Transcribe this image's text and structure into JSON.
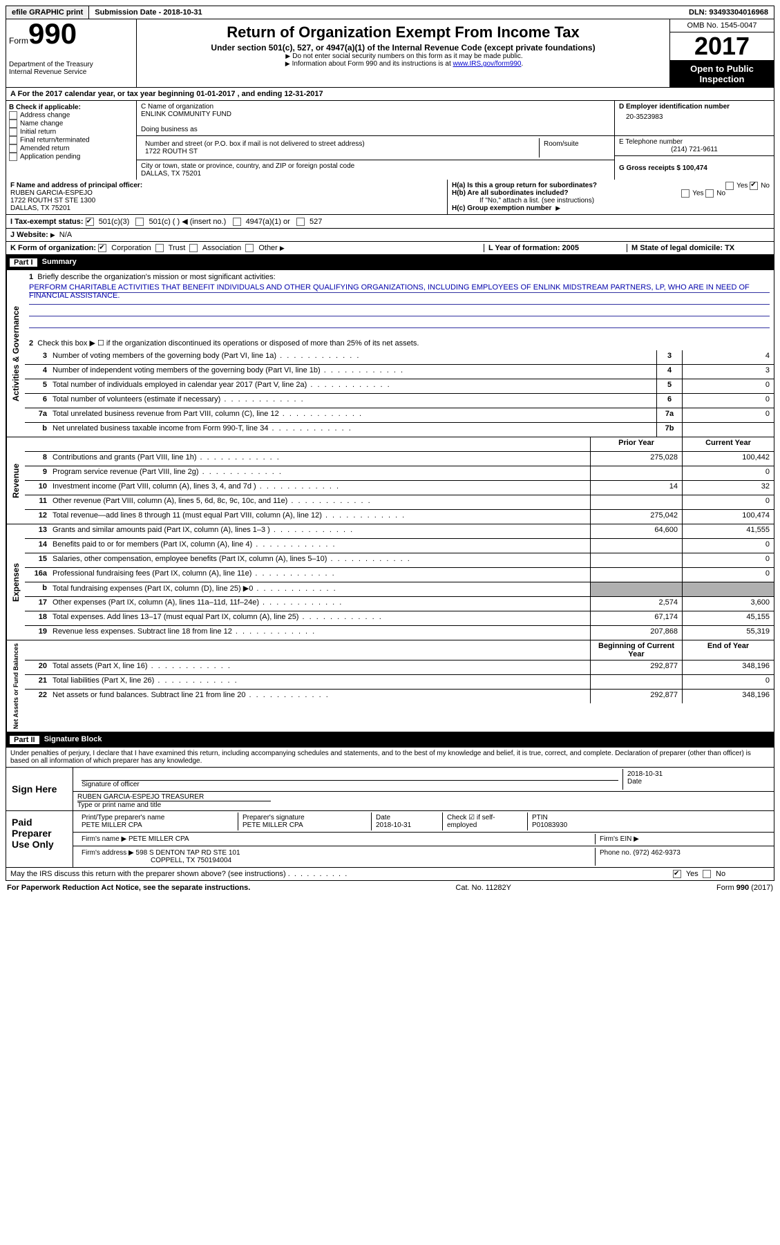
{
  "topbar": {
    "efile": "efile GRAPHIC print",
    "submission": "Submission Date - 2018-10-31",
    "dln": "DLN: 93493304016968"
  },
  "header": {
    "form_label": "Form",
    "form_number": "990",
    "dept1": "Department of the Treasury",
    "dept2": "Internal Revenue Service",
    "title": "Return of Organization Exempt From Income Tax",
    "subtitle": "Under section 501(c), 527, or 4947(a)(1) of the Internal Revenue Code (except private foundations)",
    "note1": "Do not enter social security numbers on this form as it may be made public.",
    "note2_pre": "Information about Form 990 and its instructions is at ",
    "note2_link": "www.IRS.gov/form990",
    "omb": "OMB No. 1545-0047",
    "year": "2017",
    "open_public": "Open to Public Inspection"
  },
  "section_a": "A   For the 2017 calendar year, or tax year beginning 01-01-2017    , and ending 12-31-2017",
  "col_b": {
    "label": "B Check if applicable:",
    "items": [
      "Address change",
      "Name change",
      "Initial return",
      "Final return/terminated",
      "Amended return",
      "Application pending"
    ]
  },
  "col_c": {
    "name_label": "C Name of organization",
    "name": "ENLINK COMMUNITY FUND",
    "dba_label": "Doing business as",
    "street_label": "Number and street (or P.O. box if mail is not delivered to street address)",
    "room_label": "Room/suite",
    "street": "1722 ROUTH ST",
    "city_label": "City or town, state or province, country, and ZIP or foreign postal code",
    "city": "DALLAS, TX  75201"
  },
  "col_d": {
    "ein_label": "D Employer identification number",
    "ein": "20-3523983",
    "phone_label": "E Telephone number",
    "phone": "(214) 721-9611",
    "gross_label": "G Gross receipts $ 100,474"
  },
  "block_f": {
    "label": "F  Name and address of principal officer:",
    "name": "RUBEN GARCIA-ESPEJO",
    "addr1": "1722 ROUTH ST STE 1300",
    "addr2": "DALLAS, TX  75201"
  },
  "block_h": {
    "ha": "H(a)  Is this a group return for subordinates?",
    "hb": "H(b)  Are all subordinates included?",
    "hb_note": "If \"No,\" attach a list. (see instructions)",
    "hc": "H(c)  Group exemption number",
    "yes": "Yes",
    "no": "No"
  },
  "row_i": {
    "label": "I   Tax-exempt status:",
    "opts": [
      "501(c)(3)",
      "501(c) (  )",
      "(insert no.)",
      "4947(a)(1) or",
      "527"
    ]
  },
  "row_j": {
    "label": "J   Website:",
    "val": "N/A"
  },
  "row_k": {
    "label": "K Form of organization:",
    "opts": [
      "Corporation",
      "Trust",
      "Association",
      "Other"
    ]
  },
  "row_l": "L Year of formation: 2005",
  "row_m": "M State of legal domicile: TX",
  "part1": {
    "num": "Part I",
    "title": "Summary"
  },
  "summary_intro": {
    "l1": "Briefly describe the organization's mission or most significant activities:",
    "mission": "PERFORM CHARITABLE ACTIVITIES THAT BENEFIT INDIVIDUALS AND OTHER QUALIFYING ORGANIZATIONS, INCLUDING EMPLOYEES OF ENLINK MIDSTREAM PARTNERS, LP, WHO ARE IN NEED OF FINANCIAL ASSISTANCE.",
    "l2": "Check this box ▶ ☐  if the organization discontinued its operations or disposed of more than 25% of its net assets."
  },
  "activities_rows": [
    {
      "n": "3",
      "d": "Number of voting members of the governing body (Part VI, line 1a)",
      "box": "3",
      "v": "4"
    },
    {
      "n": "4",
      "d": "Number of independent voting members of the governing body (Part VI, line 1b)",
      "box": "4",
      "v": "3"
    },
    {
      "n": "5",
      "d": "Total number of individuals employed in calendar year 2017 (Part V, line 2a)",
      "box": "5",
      "v": "0"
    },
    {
      "n": "6",
      "d": "Total number of volunteers (estimate if necessary)",
      "box": "6",
      "v": "0"
    },
    {
      "n": "7a",
      "d": "Total unrelated business revenue from Part VIII, column (C), line 12",
      "box": "7a",
      "v": "0"
    },
    {
      "n": "b",
      "d": "Net unrelated business taxable income from Form 990-T, line 34",
      "box": "7b",
      "v": ""
    }
  ],
  "col_headers": {
    "prior": "Prior Year",
    "current": "Current Year"
  },
  "revenue_rows": [
    {
      "n": "8",
      "d": "Contributions and grants (Part VIII, line 1h)",
      "p": "275,028",
      "c": "100,442"
    },
    {
      "n": "9",
      "d": "Program service revenue (Part VIII, line 2g)",
      "p": "",
      "c": "0"
    },
    {
      "n": "10",
      "d": "Investment income (Part VIII, column (A), lines 3, 4, and 7d )",
      "p": "14",
      "c": "32"
    },
    {
      "n": "11",
      "d": "Other revenue (Part VIII, column (A), lines 5, 6d, 8c, 9c, 10c, and 11e)",
      "p": "",
      "c": "0"
    },
    {
      "n": "12",
      "d": "Total revenue—add lines 8 through 11 (must equal Part VIII, column (A), line 12)",
      "p": "275,042",
      "c": "100,474"
    }
  ],
  "expense_rows": [
    {
      "n": "13",
      "d": "Grants and similar amounts paid (Part IX, column (A), lines 1–3 )",
      "p": "64,600",
      "c": "41,555"
    },
    {
      "n": "14",
      "d": "Benefits paid to or for members (Part IX, column (A), line 4)",
      "p": "",
      "c": "0"
    },
    {
      "n": "15",
      "d": "Salaries, other compensation, employee benefits (Part IX, column (A), lines 5–10)",
      "p": "",
      "c": "0"
    },
    {
      "n": "16a",
      "d": "Professional fundraising fees (Part IX, column (A), line 11e)",
      "p": "",
      "c": "0"
    },
    {
      "n": "b",
      "d": "Total fundraising expenses (Part IX, column (D), line 25) ▶0",
      "p": "shaded",
      "c": "shaded"
    },
    {
      "n": "17",
      "d": "Other expenses (Part IX, column (A), lines 11a–11d, 11f–24e)",
      "p": "2,574",
      "c": "3,600"
    },
    {
      "n": "18",
      "d": "Total expenses. Add lines 13–17 (must equal Part IX, column (A), line 25)",
      "p": "67,174",
      "c": "45,155"
    },
    {
      "n": "19",
      "d": "Revenue less expenses. Subtract line 18 from line 12",
      "p": "207,868",
      "c": "55,319"
    }
  ],
  "net_headers": {
    "begin": "Beginning of Current Year",
    "end": "End of Year"
  },
  "net_rows": [
    {
      "n": "20",
      "d": "Total assets (Part X, line 16)",
      "p": "292,877",
      "c": "348,196"
    },
    {
      "n": "21",
      "d": "Total liabilities (Part X, line 26)",
      "p": "",
      "c": "0"
    },
    {
      "n": "22",
      "d": "Net assets or fund balances. Subtract line 21 from line 20",
      "p": "292,877",
      "c": "348,196"
    }
  ],
  "part2": {
    "num": "Part II",
    "title": "Signature Block"
  },
  "penalties": "Under penalties of perjury, I declare that I have examined this return, including accompanying schedules and statements, and to the best of my knowledge and belief, it is true, correct, and complete. Declaration of preparer (other than officer) is based on all information of which preparer has any knowledge.",
  "sign": {
    "here": "Sign Here",
    "sig_officer": "Signature of officer",
    "date_label": "Date",
    "date": "2018-10-31",
    "name": "RUBEN GARCIA-ESPEJO TREASURER",
    "name_label": "Type or print name and title"
  },
  "paid": {
    "label": "Paid Preparer Use Only",
    "prep_name_label": "Print/Type preparer's name",
    "prep_name": "PETE MILLER CPA",
    "prep_sig_label": "Preparer's signature",
    "prep_sig": "PETE MILLER CPA",
    "date_label": "Date",
    "date": "2018-10-31",
    "check_label": "Check ☑ if self-employed",
    "ptin_label": "PTIN",
    "ptin": "P01083930",
    "firm_name_label": "Firm's name   ▶",
    "firm_name": "PETE MILLER CPA",
    "firm_ein_label": "Firm's EIN ▶",
    "firm_addr_label": "Firm's address ▶",
    "firm_addr": "598 S DENTON TAP RD STE 101",
    "firm_city": "COPPELL, TX  750194004",
    "firm_phone_label": "Phone no. (972) 462-9373"
  },
  "irs_discuss": "May the IRS discuss this return with the preparer shown above? (see instructions)",
  "footer": {
    "pra": "For Paperwork Reduction Act Notice, see the separate instructions.",
    "cat": "Cat. No. 11282Y",
    "form": "Form 990 (2017)"
  },
  "side_labels": {
    "activities": "Activities & Governance",
    "revenue": "Revenue",
    "expenses": "Expenses",
    "net": "Net Assets or Fund Balances"
  }
}
